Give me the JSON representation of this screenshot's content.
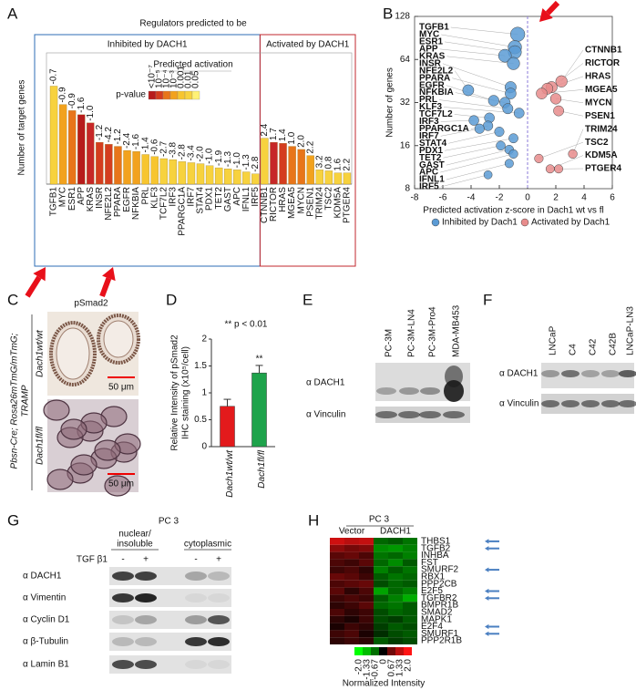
{
  "panel_labels": [
    "A",
    "B",
    "C",
    "D",
    "E",
    "F",
    "G",
    "H"
  ],
  "chart_data": [
    {
      "type": "bar",
      "title": "Regulators predicted to be",
      "subtitle": "Predicted activation",
      "ylabel": "Number of target genes",
      "groups": [
        {
          "name": "Inhibited by DACH1",
          "color": "#2e6db4"
        },
        {
          "name": "Activated by DACH1",
          "color": "#c0272d"
        }
      ],
      "categories": [
        "TGFB1",
        "MYC",
        "ESR1",
        "APP",
        "KRAS",
        "INSR",
        "NFE2L2",
        "PPARA",
        "EGFR",
        "NFKBIA",
        "PRL",
        "KLF3",
        "TCF7L2",
        "IRF3",
        "PPARGC1A",
        "IRF7",
        "STAT4",
        "PDX1",
        "TET2",
        "GAST",
        "APC",
        "IFNL1",
        "IRF5",
        "CTNNB1",
        "RICTOR",
        "HRAS",
        "MGEA5",
        "MYCN",
        "PSEN1",
        "TRIM24",
        "TSC2",
        "KDM5A",
        "PTGER4"
      ],
      "values": [
        96,
        78,
        72,
        68,
        60,
        41,
        39,
        37,
        33,
        32,
        29,
        27,
        25,
        24,
        22,
        21,
        20,
        18,
        16,
        15,
        14,
        12,
        10,
        45,
        41,
        40,
        37,
        34,
        28,
        14,
        13,
        11,
        11
      ],
      "zscore_labels": [
        "-0.7",
        "-0.9",
        "-0.9",
        "-1.6",
        "-1.0",
        "-1.2",
        "-4.2",
        "-1.2",
        "-2.4",
        "-1.6",
        "-1.4",
        "-0.6",
        "-2.7",
        "-3.8",
        "-2.8",
        "-3.4",
        "-2.0",
        "-1.0",
        "-1.9",
        "-1.3",
        "-1.0",
        "-1.3",
        "-2.8",
        "2.4",
        "1.7",
        "1.4",
        "1.0",
        "2.0",
        "2.2",
        "3.2",
        "0.8",
        "1.6",
        "2.2"
      ],
      "colors": [
        "#f7d23e",
        "#f2a21e",
        "#e8751a",
        "#b71c1c",
        "#c62828",
        "#d43d1f",
        "#d43d1f",
        "#e8751a",
        "#f2a21e",
        "#f2a21e",
        "#f7c52f",
        "#f7c52f",
        "#f7d23e",
        "#f7d23e",
        "#f7d23e",
        "#f7d23e",
        "#f7d23e",
        "#f7d23e",
        "#f7d23e",
        "#f7d23e",
        "#f7d23e",
        "#f7d23e",
        "#f7d23e",
        "#f7d23e",
        "#c62828",
        "#d43d1f",
        "#e8751a",
        "#e8751a",
        "#f2a21e",
        "#f7d23e",
        "#f7d23e",
        "#f7d23e",
        "#f7d23e"
      ],
      "ylim": [
        0,
        125
      ],
      "legend": {
        "title": "p-value",
        "labels": [
          "<10⁻⁷",
          "10⁻⁵",
          "10⁻⁴",
          "10⁻³",
          "0.001",
          "0.01",
          "0.05"
        ],
        "colors": [
          "#b71c1c",
          "#d43d1f",
          "#e8751a",
          "#f2a21e",
          "#f7c52f",
          "#f7d23e",
          "#fff176"
        ]
      }
    },
    {
      "type": "scatter",
      "xlabel": "Predicted activation z-score in Dach1 wt vs fl",
      "ylabel": "Number of genes",
      "xlim": [
        -8,
        6
      ],
      "xticks": [
        -8,
        -6,
        -4,
        -2,
        0,
        2,
        4,
        6
      ],
      "ylim": [
        8,
        128
      ],
      "yticks": [
        8,
        16,
        32,
        64,
        128
      ],
      "log_y": true,
      "reference_x": 0,
      "legend": "bottom",
      "series": [
        {
          "name": "Inhibited by Dach1",
          "color": "#5b9bd5",
          "label_color": "#2e75b6",
          "labels": [
            "TGFB1",
            "MYC",
            "ESR1",
            "APP",
            "KRAS",
            "INSR",
            "NFE2L2",
            "PPARA",
            "EGFR",
            "NFKBIA",
            "PRL",
            "KLF3",
            "TCF7L2",
            "IRF3",
            "PPARGC1A",
            "IRF7",
            "STAT4",
            "PDX1",
            "TET2",
            "GAST",
            "APC",
            "IFNL1",
            "IRF5"
          ],
          "x": [
            -0.7,
            -0.9,
            -0.9,
            -1.6,
            -1.0,
            -1.2,
            -4.2,
            -1.2,
            -2.4,
            -1.6,
            -1.4,
            -0.6,
            -2.7,
            -3.8,
            -2.8,
            -3.4,
            -2.0,
            -1.0,
            -1.9,
            -1.3,
            -1.0,
            -1.3,
            -2.8
          ],
          "y": [
            96,
            78,
            72,
            68,
            60,
            41,
            39,
            37,
            33,
            32,
            29,
            27,
            25,
            24,
            22,
            21,
            20,
            18,
            16,
            15,
            14,
            12,
            10
          ]
        },
        {
          "name": "Activated by Dach1",
          "color": "#e88c8c",
          "label_color": "#c00000",
          "labels": [
            "CTNNB1",
            "RICTOR",
            "HRAS",
            "MGEA5",
            "MYCN",
            "PSEN1",
            "TRIM24",
            "TSC2",
            "KDM5A",
            "PTGER4"
          ],
          "x": [
            2.4,
            1.7,
            1.4,
            1.0,
            2.0,
            2.2,
            3.2,
            0.8,
            1.6,
            2.2
          ],
          "y": [
            45,
            41,
            40,
            37,
            34,
            28,
            14,
            13,
            11,
            11
          ]
        }
      ]
    },
    {
      "type": "bar",
      "ylabel": [
        "Relative Intensity of pSmad2",
        "IHC staining (x10⁵/cell)"
      ],
      "annotation": "** p < 0.01",
      "significance_label": "**",
      "categories": [
        "Dach1wt/wt",
        "Dach1fl/fl"
      ],
      "values": [
        0.75,
        1.37
      ],
      "errors": [
        0.13,
        0.14
      ],
      "colors": [
        "#e31a1c",
        "#1ea34b"
      ],
      "ylim": [
        0,
        2
      ],
      "yticks": [
        0,
        0.5,
        1,
        1.5,
        2
      ]
    },
    {
      "type": "heatmap",
      "title": "PC 3",
      "groups": [
        "Vector",
        "DACH1"
      ],
      "rows": [
        "THBS1",
        "TGFB2",
        "INHBA",
        "FST",
        "SMURF2",
        "RBX1",
        "PPP2CB",
        "E2F5",
        "TGFBR2",
        "BMPR1B",
        "SMAD2",
        "MAPK1",
        "E2F4",
        "SMURF1",
        "PPP2R1B"
      ],
      "values": [
        [
          1.5,
          1.3,
          1.4,
          -0.6,
          -0.5,
          -0.7
        ],
        [
          0.9,
          0.7,
          0.8,
          -0.9,
          -1.0,
          -0.8
        ],
        [
          0.5,
          0.6,
          0.4,
          -0.7,
          -0.6,
          -0.8
        ],
        [
          0.4,
          0.3,
          0.5,
          -0.6,
          -0.9,
          -0.5
        ],
        [
          0.3,
          0.4,
          0.2,
          -0.8,
          -0.5,
          -0.7
        ],
        [
          0.6,
          0.5,
          0.3,
          -0.5,
          -0.7,
          -0.6
        ],
        [
          0.4,
          0.5,
          0.6,
          -0.4,
          -0.6,
          -0.5
        ],
        [
          0.5,
          0.2,
          0.4,
          -1.1,
          -0.6,
          -0.8
        ],
        [
          0.3,
          0.4,
          0.3,
          -0.5,
          -0.8,
          -1.2
        ],
        [
          0.2,
          0.3,
          0.5,
          -0.6,
          -0.7,
          -0.5
        ],
        [
          0.4,
          0.2,
          0.3,
          -0.4,
          -0.6,
          -0.5
        ],
        [
          0.2,
          0.1,
          0.3,
          -0.4,
          -0.3,
          -0.5
        ],
        [
          0.1,
          0.3,
          0.2,
          -0.3,
          -0.5,
          -0.4
        ],
        [
          0.3,
          0.4,
          0.1,
          -0.2,
          -0.4,
          -0.5
        ],
        [
          0.2,
          0.3,
          0.2,
          -0.5,
          -0.3,
          -0.4
        ]
      ],
      "zlim": [
        -2,
        2
      ],
      "colorbar_ticks": [
        {
          "value": -2,
          "label": "-2.0"
        },
        -1.33,
        -0.67,
        0,
        0.67,
        1.33,
        {
          "value": 2,
          "label": "2.0"
        }
      ],
      "colorbar_label": "Normalized Intensity"
    }
  ],
  "panel_c": {
    "title": "pSmad2",
    "side_label": [
      "Pbsn-Cre; Rosa26mTmG/mTmG;",
      "TRAMP"
    ],
    "rows": [
      "Dach1wt/wt",
      "Dach1fl/fl"
    ],
    "scale_bars": [
      "50 μm",
      "50 μm"
    ]
  },
  "panel_e": {
    "lanes": [
      "PC-3M",
      "PC-3M-LN4",
      "PC-3M-Pro4",
      "MDA-MB453"
    ],
    "rows": [
      "α DACH1",
      "α Vinculin"
    ]
  },
  "panel_f": {
    "lanes": [
      "LNCaP",
      "C4",
      "C42",
      "C42B",
      "LNCaP-LN3"
    ],
    "rows": [
      "α DACH1",
      "α Vinculin"
    ]
  },
  "panel_g": {
    "title": "PC 3",
    "fractions": [
      [
        "nuclear/",
        "insoluble"
      ],
      [
        "cytoplasmic"
      ]
    ],
    "treatment": "TGF β1",
    "lane_signs": [
      "-",
      "+",
      "-",
      "+"
    ],
    "rows": [
      "α DACH1",
      "α Vimentin",
      "α Cyclin D1",
      "α β-Tubulin",
      "α Lamin B1"
    ]
  }
}
